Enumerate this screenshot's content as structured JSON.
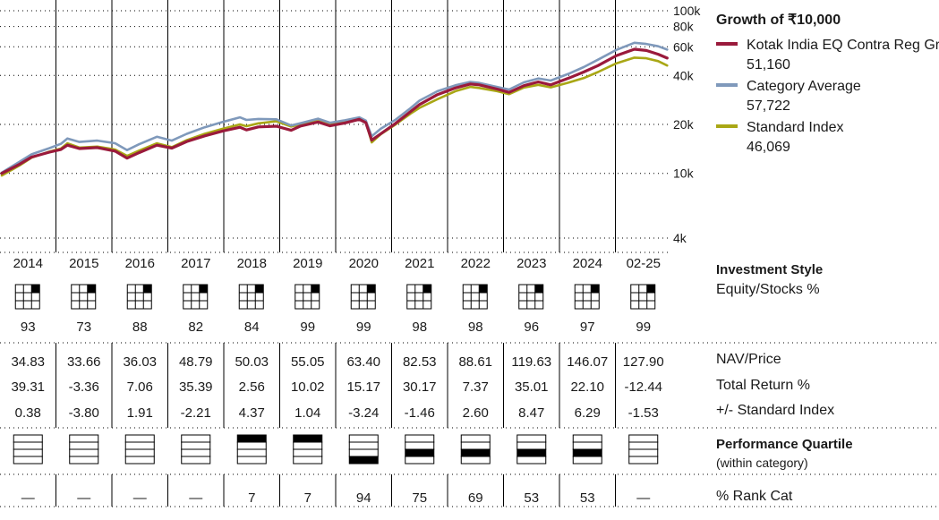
{
  "chart_data": {
    "type": "line",
    "title": "Growth of ₹10,000",
    "y_scale": "log",
    "ylim": [
      4000,
      100000
    ],
    "yticks": [
      {
        "v": 100000,
        "label": "100k"
      },
      {
        "v": 80000,
        "label": "80k"
      },
      {
        "v": 60000,
        "label": "60k"
      },
      {
        "v": 40000,
        "label": "40k"
      },
      {
        "v": 20000,
        "label": "20k"
      },
      {
        "v": 10000,
        "label": "10k"
      },
      {
        "v": 4000,
        "label": "4k"
      }
    ],
    "x_start": 2014.0,
    "x_end": 2025.25,
    "series": [
      {
        "name": "Kotak India EQ Contra Reg Gr",
        "value_label": "51,160",
        "color": "#9a1a3c",
        "points": [
          [
            2014.0,
            10000
          ],
          [
            2014.3,
            11400
          ],
          [
            2014.5,
            12600
          ],
          [
            2014.8,
            13500
          ],
          [
            2014.99,
            14000
          ],
          [
            2015.1,
            14900
          ],
          [
            2015.3,
            14200
          ],
          [
            2015.6,
            14400
          ],
          [
            2015.9,
            13700
          ],
          [
            2016.1,
            12400
          ],
          [
            2016.3,
            13400
          ],
          [
            2016.6,
            14900
          ],
          [
            2016.85,
            14300
          ],
          [
            2017.1,
            15700
          ],
          [
            2017.4,
            17000
          ],
          [
            2017.7,
            18200
          ],
          [
            2017.99,
            19200
          ],
          [
            2018.1,
            18500
          ],
          [
            2018.3,
            19300
          ],
          [
            2018.6,
            19500
          ],
          [
            2018.85,
            18400
          ],
          [
            2019.0,
            19500
          ],
          [
            2019.3,
            20700
          ],
          [
            2019.5,
            19600
          ],
          [
            2019.75,
            20400
          ],
          [
            2019.99,
            21500
          ],
          [
            2020.1,
            20500
          ],
          [
            2020.2,
            16000
          ],
          [
            2020.35,
            17500
          ],
          [
            2020.6,
            20300
          ],
          [
            2020.85,
            24000
          ],
          [
            2021.0,
            26500
          ],
          [
            2021.3,
            30500
          ],
          [
            2021.6,
            33500
          ],
          [
            2021.85,
            35400
          ],
          [
            2022.0,
            35000
          ],
          [
            2022.3,
            33000
          ],
          [
            2022.5,
            31500
          ],
          [
            2022.75,
            34600
          ],
          [
            2022.99,
            36500
          ],
          [
            2023.2,
            35000
          ],
          [
            2023.5,
            38500
          ],
          [
            2023.75,
            42000
          ],
          [
            2023.99,
            46000
          ],
          [
            2024.3,
            53000
          ],
          [
            2024.6,
            58000
          ],
          [
            2024.8,
            57000
          ],
          [
            2025.0,
            54000
          ],
          [
            2025.15,
            51160
          ]
        ]
      },
      {
        "name": "Category Average",
        "value_label": "57,722",
        "color": "#7f99bb",
        "points": [
          [
            2014.0,
            10100
          ],
          [
            2014.3,
            11800
          ],
          [
            2014.5,
            13100
          ],
          [
            2014.8,
            14300
          ],
          [
            2014.99,
            15200
          ],
          [
            2015.1,
            16400
          ],
          [
            2015.3,
            15600
          ],
          [
            2015.6,
            15900
          ],
          [
            2015.9,
            15300
          ],
          [
            2016.1,
            13900
          ],
          [
            2016.3,
            15100
          ],
          [
            2016.6,
            16800
          ],
          [
            2016.85,
            15900
          ],
          [
            2017.1,
            17500
          ],
          [
            2017.4,
            19200
          ],
          [
            2017.7,
            20700
          ],
          [
            2017.99,
            22100
          ],
          [
            2018.1,
            21300
          ],
          [
            2018.3,
            21600
          ],
          [
            2018.6,
            21500
          ],
          [
            2018.85,
            19700
          ],
          [
            2019.0,
            20300
          ],
          [
            2019.3,
            21700
          ],
          [
            2019.5,
            20500
          ],
          [
            2019.75,
            21200
          ],
          [
            2019.99,
            22100
          ],
          [
            2020.1,
            21100
          ],
          [
            2020.2,
            16900
          ],
          [
            2020.35,
            18800
          ],
          [
            2020.6,
            21400
          ],
          [
            2020.85,
            25200
          ],
          [
            2021.0,
            28000
          ],
          [
            2021.3,
            32000
          ],
          [
            2021.6,
            34800
          ],
          [
            2021.85,
            36500
          ],
          [
            2022.0,
            36000
          ],
          [
            2022.3,
            34000
          ],
          [
            2022.5,
            32800
          ],
          [
            2022.75,
            36300
          ],
          [
            2022.99,
            38300
          ],
          [
            2023.2,
            37200
          ],
          [
            2023.5,
            41000
          ],
          [
            2023.75,
            45000
          ],
          [
            2023.99,
            50000
          ],
          [
            2024.3,
            57500
          ],
          [
            2024.6,
            63500
          ],
          [
            2024.8,
            62500
          ],
          [
            2025.0,
            60500
          ],
          [
            2025.15,
            57722
          ]
        ]
      },
      {
        "name": "Standard Index",
        "value_label": "46,069",
        "color": "#a9a715",
        "points": [
          [
            2014.0,
            9700
          ],
          [
            2014.3,
            11200
          ],
          [
            2014.5,
            12500
          ],
          [
            2014.8,
            13600
          ],
          [
            2014.99,
            14200
          ],
          [
            2015.1,
            15300
          ],
          [
            2015.3,
            14400
          ],
          [
            2015.6,
            14600
          ],
          [
            2015.9,
            14000
          ],
          [
            2016.1,
            12800
          ],
          [
            2016.3,
            13800
          ],
          [
            2016.6,
            15300
          ],
          [
            2016.85,
            14500
          ],
          [
            2017.1,
            16000
          ],
          [
            2017.4,
            17500
          ],
          [
            2017.7,
            18800
          ],
          [
            2017.99,
            20000
          ],
          [
            2018.1,
            19500
          ],
          [
            2018.3,
            20300
          ],
          [
            2018.6,
            20900
          ],
          [
            2018.85,
            19400
          ],
          [
            2019.0,
            20000
          ],
          [
            2019.3,
            21500
          ],
          [
            2019.5,
            20300
          ],
          [
            2019.75,
            21000
          ],
          [
            2019.99,
            21700
          ],
          [
            2020.1,
            20700
          ],
          [
            2020.2,
            15500
          ],
          [
            2020.35,
            17400
          ],
          [
            2020.6,
            20000
          ],
          [
            2020.85,
            23300
          ],
          [
            2021.0,
            25300
          ],
          [
            2021.3,
            28600
          ],
          [
            2021.6,
            32000
          ],
          [
            2021.85,
            34000
          ],
          [
            2022.0,
            33500
          ],
          [
            2022.3,
            32000
          ],
          [
            2022.5,
            30700
          ],
          [
            2022.75,
            33700
          ],
          [
            2022.99,
            35000
          ],
          [
            2023.2,
            33800
          ],
          [
            2023.5,
            36200
          ],
          [
            2023.75,
            38500
          ],
          [
            2023.99,
            42000
          ],
          [
            2024.3,
            47500
          ],
          [
            2024.6,
            51500
          ],
          [
            2024.8,
            51000
          ],
          [
            2025.0,
            49000
          ],
          [
            2025.15,
            46069
          ]
        ]
      }
    ],
    "columns": [
      "2014",
      "2015",
      "2016",
      "2017",
      "2018",
      "2019",
      "2020",
      "2021",
      "2022",
      "2023",
      "2024",
      "02-25"
    ],
    "equity_pct": [
      "93",
      "73",
      "88",
      "82",
      "84",
      "99",
      "99",
      "98",
      "98",
      "96",
      "97",
      "99"
    ],
    "nav": [
      "34.83",
      "33.66",
      "36.03",
      "48.79",
      "50.03",
      "55.05",
      "63.40",
      "82.53",
      "88.61",
      "119.63",
      "146.07",
      "127.90"
    ],
    "total_return": [
      "39.31",
      "-3.36",
      "7.06",
      "35.39",
      "2.56",
      "10.02",
      "15.17",
      "30.17",
      "7.37",
      "35.01",
      "22.10",
      "-12.44"
    ],
    "vs_index": [
      "0.38",
      "-3.80",
      "1.91",
      "-2.21",
      "4.37",
      "1.04",
      "-3.24",
      "-1.46",
      "2.60",
      "8.47",
      "6.29",
      "-1.53"
    ],
    "quartile": [
      null,
      null,
      null,
      null,
      1,
      1,
      4,
      3,
      3,
      3,
      3,
      null
    ],
    "rank": [
      "—",
      "—",
      "—",
      "—",
      "7",
      "7",
      "94",
      "75",
      "69",
      "53",
      "53",
      "—"
    ]
  },
  "labels": {
    "investment_style": "Investment Style",
    "equity_stocks": "Equity/Stocks %",
    "nav_price": "NAV/Price",
    "total_return": "Total Return %",
    "vs_standard_index": "+/- Standard Index",
    "performance_quartile": "Performance Quartile",
    "within_category": "(within category)",
    "rank_cat": "% Rank Cat"
  },
  "colors": {
    "grid_line": "#000000",
    "style_box_fill": "#000000"
  }
}
